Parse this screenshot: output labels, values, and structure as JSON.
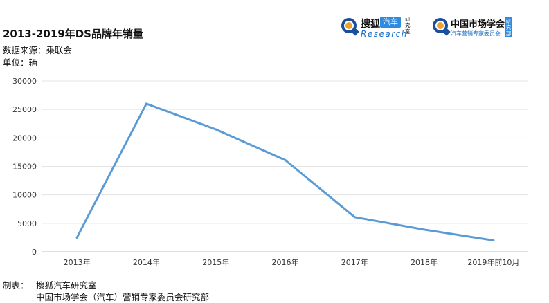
{
  "header": {
    "title": "2013-2019年DS品牌年销量",
    "source": "数据来源：乘联会",
    "unit": "单位：辆"
  },
  "logos": {
    "sohu": {
      "name": "搜狐",
      "tag": "汽车",
      "sub": "Research",
      "side": "研究室"
    },
    "cpca": {
      "name": "中国市场学会",
      "sub": "汽车营销专家委员会",
      "side": "研究部"
    }
  },
  "footer": {
    "label": "制表：",
    "line1": "搜狐汽车研究室",
    "line2": "中国市场学会（汽车）营销专家委员会研究部"
  },
  "chart_data": {
    "type": "line",
    "title": "2013-2019年DS品牌年销量",
    "xlabel": "",
    "ylabel": "",
    "categories": [
      "2013年",
      "2014年",
      "2015年",
      "2016年",
      "2017年",
      "2018年",
      "2019年前10月"
    ],
    "series": [
      {
        "values": [
          2500,
          26000,
          21500,
          16100,
          6100,
          3900,
          2000
        ],
        "color": "#5b9bd5"
      }
    ],
    "ylim": [
      0,
      30000
    ],
    "yticks": [
      0,
      5000,
      10000,
      15000,
      20000,
      25000,
      30000
    ],
    "grid": true,
    "legend": "none"
  }
}
